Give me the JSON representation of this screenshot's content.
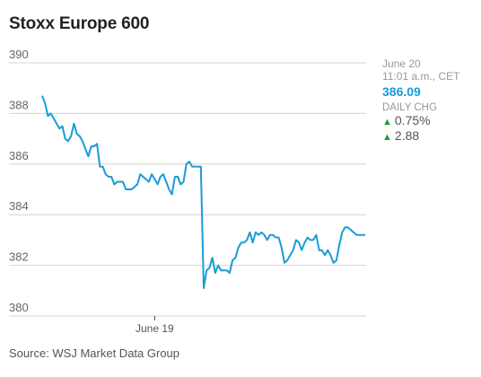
{
  "header": {
    "title": "Stoxx Europe 600"
  },
  "panel": {
    "date": "June 20",
    "time": "11:01 a.m., CET",
    "price": "386.09",
    "change_label": "DAILY CHG",
    "change_pct": "0.75%",
    "change_abs": "2.88"
  },
  "source": "Source: WSJ Market Data Group",
  "colors": {
    "line": "#1a9bd7",
    "price": "#1a9bd7",
    "up_arrow": "#1a9e3c",
    "grid": "#d4d4d4"
  },
  "chart_data": {
    "type": "line",
    "title": "Stoxx Europe 600",
    "xlabel": "",
    "ylabel": "",
    "ylim": [
      380,
      390
    ],
    "yticks": [
      "390",
      "388",
      "386",
      "384",
      "382",
      "380"
    ],
    "xticks": [
      {
        "label": "June 19",
        "at": 39
      }
    ],
    "grid": true,
    "series": [
      {
        "values": [
          388.7,
          388.4,
          387.9,
          388.0,
          387.8,
          387.6,
          387.4,
          387.5,
          387.0,
          386.9,
          387.1,
          387.6,
          387.2,
          387.1,
          386.9,
          386.6,
          386.3,
          386.7,
          386.7,
          386.8,
          385.9,
          385.9,
          385.6,
          385.5,
          385.5,
          385.2,
          385.3,
          385.3,
          385.3,
          385.0,
          385.0,
          385.0,
          385.1,
          385.2,
          385.6,
          385.5,
          385.4,
          385.3,
          385.6,
          385.4,
          385.2,
          385.5,
          385.6,
          385.3,
          385.0,
          384.8,
          385.5,
          385.5,
          385.2,
          385.3,
          386.0,
          386.1,
          385.9,
          385.9,
          385.9,
          385.9,
          381.1,
          381.8,
          381.9,
          382.3,
          381.7,
          382.0,
          381.8,
          381.8,
          381.8,
          381.7,
          382.2,
          382.3,
          382.7,
          382.9,
          382.9,
          383.0,
          383.3,
          382.9,
          383.3,
          383.2,
          383.3,
          383.2,
          383.0,
          383.2,
          383.2,
          383.1,
          383.1,
          382.7,
          382.1,
          382.2,
          382.4,
          382.6,
          383.0,
          382.9,
          382.6,
          382.9,
          383.1,
          383.0,
          383.0,
          383.2,
          382.6,
          382.6,
          382.4,
          382.6,
          382.4,
          382.1,
          382.2,
          382.8,
          383.3,
          383.5,
          383.5,
          383.4,
          383.3,
          383.2,
          383.2,
          383.2,
          383.2
        ]
      }
    ]
  }
}
